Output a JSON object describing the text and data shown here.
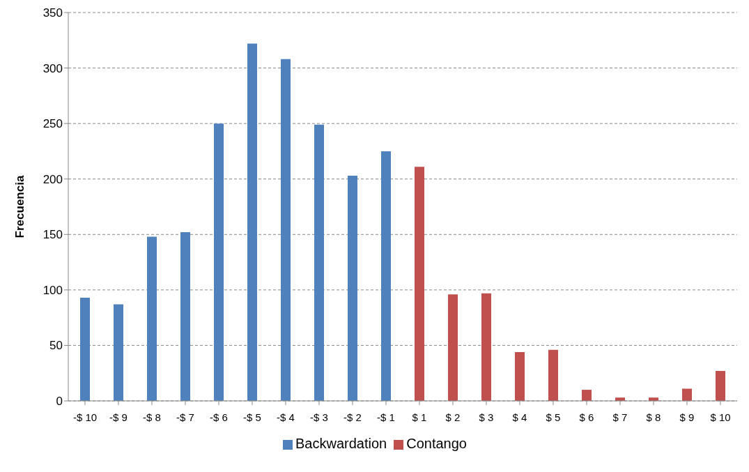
{
  "chart_data": {
    "type": "bar",
    "ylabel": "Frecuencia",
    "categories": [
      "-$ 10",
      "-$ 9",
      "-$ 8",
      "-$ 7",
      "-$ 6",
      "-$ 5",
      "-$ 4",
      "-$ 3",
      "-$ 2",
      "-$ 1",
      "$ 1",
      "$ 2",
      "$ 3",
      "$ 4",
      "$ 5",
      "$ 6",
      "$ 7",
      "$ 8",
      "$ 9",
      "$ 10"
    ],
    "series": [
      {
        "name": "Backwardation",
        "color": "#4f81bd",
        "values": [
          93,
          87,
          148,
          152,
          250,
          322,
          308,
          249,
          203,
          225,
          null,
          null,
          null,
          null,
          null,
          null,
          null,
          null,
          null,
          null
        ]
      },
      {
        "name": "Contango",
        "color": "#c0504d",
        "values": [
          null,
          null,
          null,
          null,
          null,
          null,
          null,
          null,
          null,
          null,
          211,
          96,
          97,
          44,
          46,
          10,
          3,
          3,
          11,
          27
        ]
      }
    ],
    "ylim": [
      0,
      350
    ],
    "yticks": [
      0,
      50,
      100,
      150,
      200,
      250,
      300,
      350
    ],
    "grid": "y",
    "legend": "bottom"
  }
}
